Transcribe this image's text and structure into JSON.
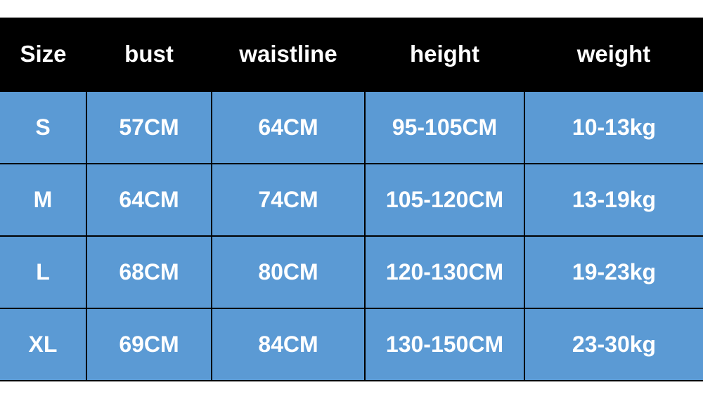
{
  "table": {
    "headers": [
      "Size",
      "bust",
      "waistline",
      "height",
      "weight"
    ],
    "rows": [
      [
        "S",
        "57CM",
        "64CM",
        "95-105CM",
        "10-13kg"
      ],
      [
        "M",
        "64CM",
        "74CM",
        "105-120CM",
        "13-19kg"
      ],
      [
        "L",
        "68CM",
        "80CM",
        "120-130CM",
        "19-23kg"
      ],
      [
        "XL",
        "69CM",
        "84CM",
        "130-150CM",
        "23-30kg"
      ]
    ]
  },
  "colors": {
    "header_bg": "#000000",
    "cell_bg": "#5b9ad4",
    "text": "#ffffff"
  }
}
